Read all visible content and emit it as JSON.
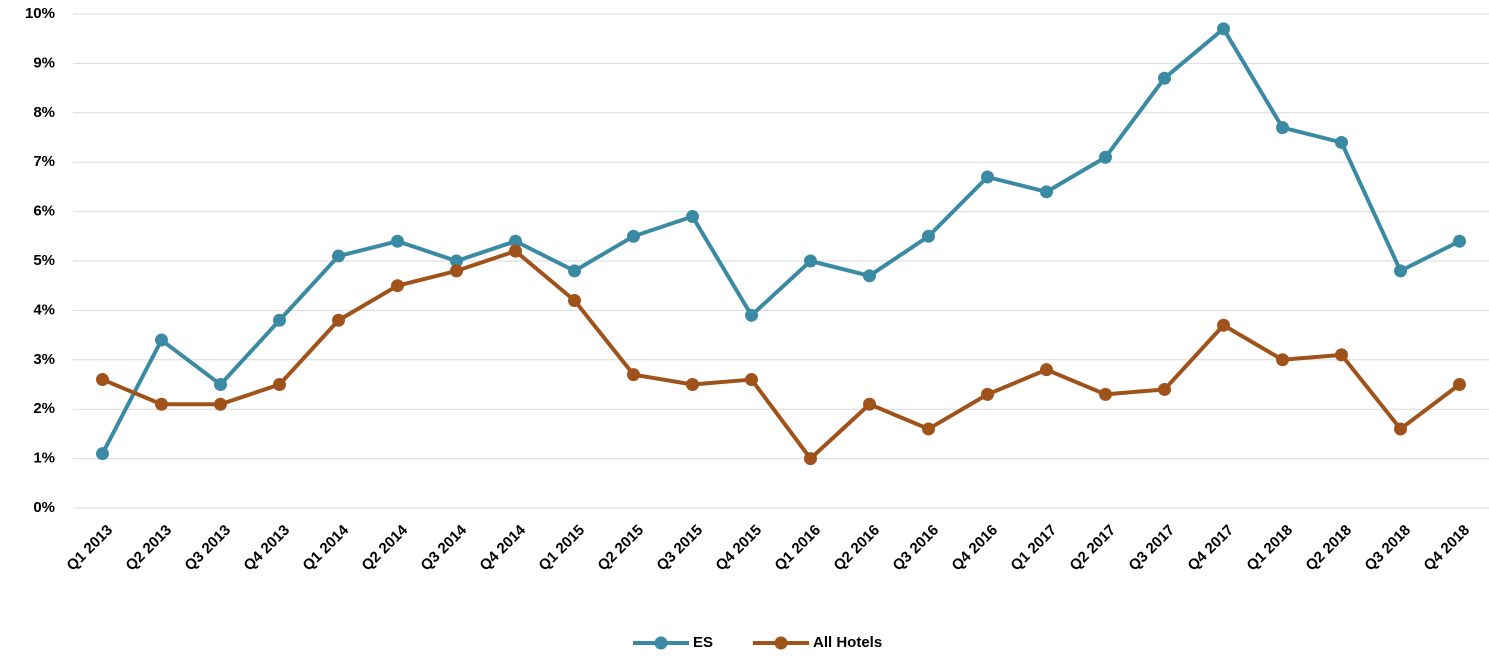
{
  "chart_data": {
    "type": "line",
    "categories": [
      "Q1 2013",
      "Q2 2013",
      "Q3 2013",
      "Q4 2013",
      "Q1 2014",
      "Q2 2014",
      "Q3 2014",
      "Q4 2014",
      "Q1 2015",
      "Q2 2015",
      "Q3 2015",
      "Q4 2015",
      "Q1 2016",
      "Q2 2016",
      "Q3 2016",
      "Q4 2016",
      "Q1 2017",
      "Q2 2017",
      "Q3 2017",
      "Q4 2017",
      "Q1 2018",
      "Q2 2018",
      "Q3 2018",
      "Q4 2018"
    ],
    "series": [
      {
        "name": "ES",
        "color": "#3b8aa3",
        "values": [
          1.1,
          3.4,
          2.5,
          3.8,
          5.1,
          5.4,
          5.0,
          5.4,
          4.8,
          5.5,
          5.9,
          3.9,
          5.0,
          4.7,
          5.5,
          6.7,
          6.4,
          7.1,
          8.7,
          9.7,
          7.7,
          7.4,
          4.8,
          5.4
        ]
      },
      {
        "name": "All Hotels",
        "color": "#a0521b",
        "values": [
          2.6,
          2.1,
          2.1,
          2.5,
          3.8,
          4.5,
          4.8,
          5.2,
          4.2,
          2.7,
          2.5,
          2.6,
          1.0,
          2.1,
          1.6,
          2.3,
          2.8,
          2.3,
          2.4,
          3.7,
          3.0,
          3.1,
          1.6,
          2.5
        ]
      }
    ],
    "ylim": [
      0,
      10
    ],
    "yticks": [
      {
        "value": 0,
        "label": "0%"
      },
      {
        "value": 1,
        "label": "1%"
      },
      {
        "value": 2,
        "label": "2%"
      },
      {
        "value": 3,
        "label": "3%"
      },
      {
        "value": 4,
        "label": "4%"
      },
      {
        "value": 5,
        "label": "5%"
      },
      {
        "value": 6,
        "label": "6%"
      },
      {
        "value": 7,
        "label": "7%"
      },
      {
        "value": 8,
        "label": "8%"
      },
      {
        "value": 9,
        "label": "9%"
      },
      {
        "value": 10,
        "label": "10%"
      }
    ],
    "grid": true,
    "legend": "bottom"
  }
}
